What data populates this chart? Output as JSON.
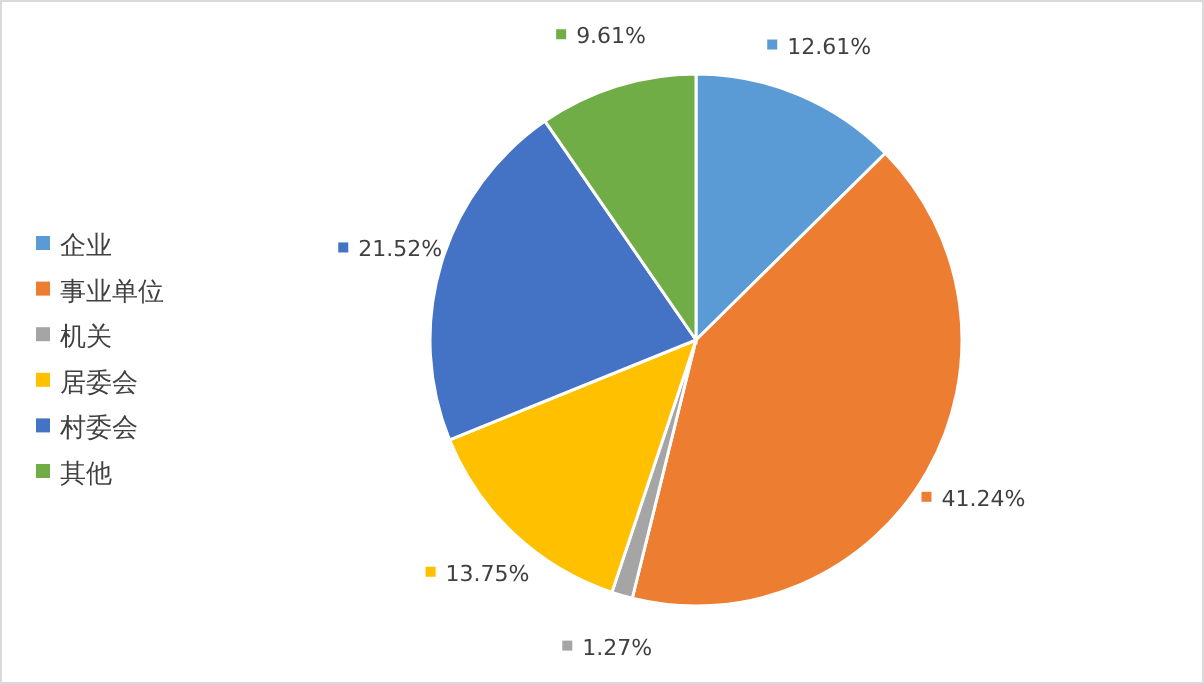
{
  "chart_data": {
    "type": "pie",
    "categories": [
      "企业",
      "事业单位",
      "机关",
      "居委会",
      "村委会",
      "其他"
    ],
    "values": [
      12.61,
      41.24,
      1.27,
      13.75,
      21.52,
      9.61
    ],
    "value_labels": [
      "12.61%",
      "41.24%",
      "1.27%",
      "13.75%",
      "21.52%",
      "9.61%"
    ],
    "colors": [
      "#5b9bd5",
      "#ed7d31",
      "#a5a5a5",
      "#ffc000",
      "#4472c4",
      "#70ad47"
    ],
    "legend": "left"
  }
}
